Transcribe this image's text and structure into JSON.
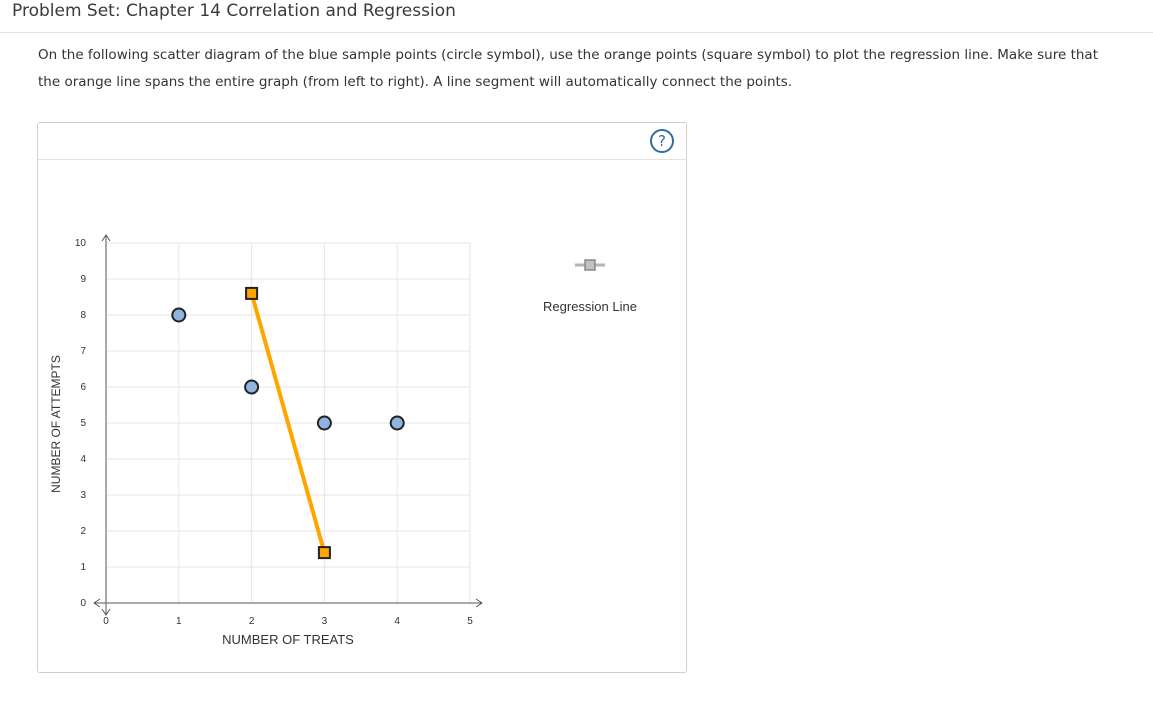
{
  "page": {
    "title": "Problem Set: Chapter 14 Correlation and Regression",
    "instructions": "On the following scatter diagram of the blue sample points (circle symbol), use the orange points (square symbol) to plot the regression line. Make sure that the orange line spans the entire graph (from left to right). A line segment will automatically connect the points."
  },
  "toolbar": {
    "help_label": "?"
  },
  "legend": {
    "regression_line_label": "Regression Line"
  },
  "colors": {
    "sample_point_fill": "#8fb4e0",
    "regression_line": "#ffa500",
    "regression_point_fill": "#ffa500",
    "grid": "#e6e6e6",
    "axis": "#555555"
  },
  "chart_data": {
    "type": "scatter",
    "title": "",
    "xlabel": "NUMBER OF TREATS",
    "ylabel": "NUMBER OF ATTEMPTS",
    "xlim": [
      0,
      5
    ],
    "ylim": [
      0,
      10
    ],
    "x_ticks": [
      "0",
      "1",
      "2",
      "3",
      "4",
      "5"
    ],
    "y_ticks": [
      "0",
      "1",
      "2",
      "3",
      "4",
      "5",
      "6",
      "7",
      "8",
      "9",
      "10"
    ],
    "grid": true,
    "legend_position": "right",
    "series": [
      {
        "marker": "circle",
        "points": [
          [
            1,
            8
          ],
          [
            2,
            6
          ],
          [
            3,
            5
          ],
          [
            4,
            5
          ]
        ]
      },
      {
        "name": "Regression Line",
        "marker": "square",
        "line": true,
        "points": [
          [
            2,
            8.6
          ],
          [
            3,
            1.4
          ]
        ]
      }
    ]
  }
}
